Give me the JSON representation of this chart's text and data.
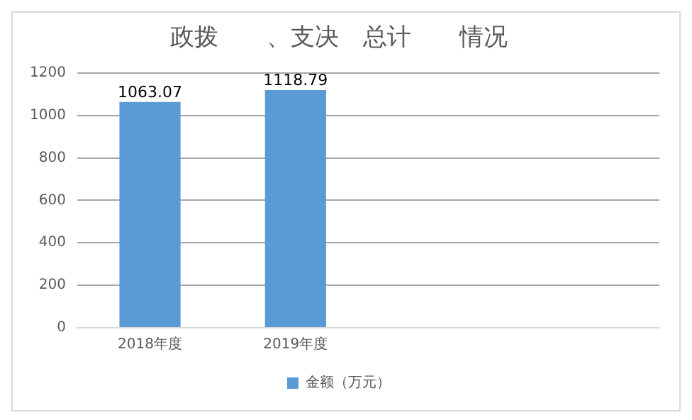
{
  "chart_data": {
    "type": "bar",
    "title": "政拨　　、支决　总计　　情况",
    "categories": [
      "2018年度",
      "2019年度",
      null,
      null
    ],
    "series": [
      {
        "name": "金额（万元）",
        "color": "#5b9bd5",
        "values": [
          1063.07,
          1118.79,
          null,
          null
        ]
      }
    ],
    "ylim": [
      0,
      1200
    ],
    "yticks": [
      0,
      200,
      400,
      600,
      800,
      1000,
      1200
    ],
    "grid": "y",
    "legend": "bottom",
    "data_labels": true
  }
}
